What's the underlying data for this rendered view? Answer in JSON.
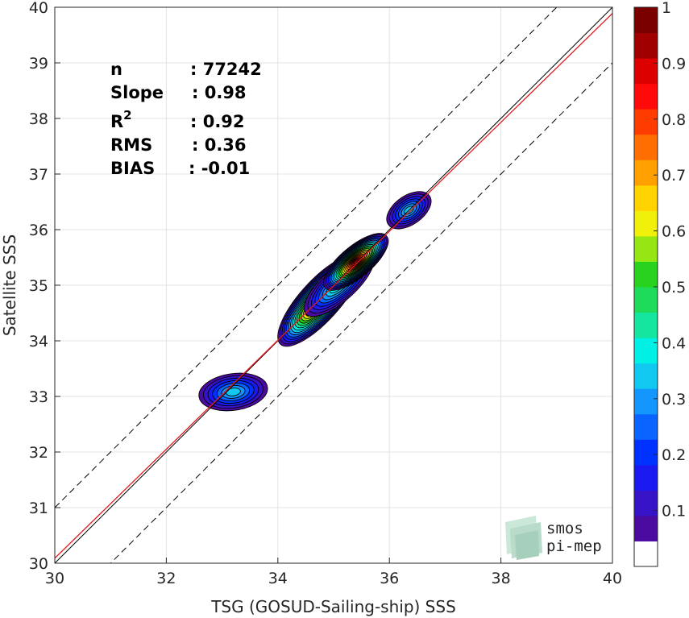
{
  "chart_data": {
    "type": "contour-density-scatter",
    "xlabel": "TSG (GOSUD-Sailing-ship) SSS",
    "ylabel": "Satellite SSS",
    "xlim": [
      30,
      40
    ],
    "ylim": [
      30,
      40
    ],
    "x_ticks": [
      "30",
      "32",
      "34",
      "36",
      "38",
      "40"
    ],
    "y_ticks": [
      "30",
      "31",
      "32",
      "33",
      "34",
      "35",
      "36",
      "37",
      "38",
      "39",
      "40"
    ],
    "grid": true,
    "stats": [
      {
        "label": "n",
        "value": ": 77242"
      },
      {
        "label": "Slope",
        "value": ": 0.98"
      },
      {
        "label": "R",
        "sup": "2",
        "value": ": 0.92"
      },
      {
        "label": "RMS",
        "value": ": 0.36"
      },
      {
        "label": "BIAS",
        "value": ": -0.01"
      }
    ],
    "reference_lines": [
      {
        "kind": "identity",
        "style": "solid",
        "color": "#000000",
        "slope": 1.0,
        "intercept": 0.0
      },
      {
        "kind": "regression",
        "style": "solid",
        "color": "#e41a1c",
        "slope": 0.98,
        "intercept": 0.69
      },
      {
        "kind": "offset+1",
        "style": "dashed",
        "color": "#000000",
        "slope": 1.0,
        "intercept": 1.0
      },
      {
        "kind": "offset-1",
        "style": "dashed",
        "color": "#000000",
        "slope": 1.0,
        "intercept": -1.0
      }
    ],
    "colorbar": {
      "min": 0,
      "max": 1,
      "tick_labels": [
        "0.1",
        "0.2",
        "0.3",
        "0.4",
        "0.5",
        "0.6",
        "0.7",
        "0.8",
        "0.9",
        "1"
      ],
      "tick_values": [
        0.1,
        0.2,
        0.3,
        0.4,
        0.5,
        0.6,
        0.7,
        0.8,
        0.9,
        1.0
      ],
      "band_colors": [
        "#ffffff",
        "#4b0aa0",
        "#3713c8",
        "#1a1af0",
        "#0032ff",
        "#0a64ff",
        "#1496ff",
        "#10c8f0",
        "#00f0e6",
        "#14e6a0",
        "#1edc5a",
        "#28d21e",
        "#96e614",
        "#f0f00a",
        "#ffd200",
        "#ffa000",
        "#ff6e00",
        "#ff3c00",
        "#ff0a0a",
        "#dc0000",
        "#a00000",
        "#7a0000"
      ]
    },
    "density_blobs": [
      {
        "cx": 33.2,
        "cy": 33.08,
        "rx": 0.62,
        "ry": 0.33,
        "angle": 8,
        "peak": 0.32
      },
      {
        "cx": 34.75,
        "cy": 34.72,
        "rx": 1.05,
        "ry": 0.36,
        "angle": 48,
        "peak": 0.9
      },
      {
        "cx": 35.1,
        "cy": 35.02,
        "rx": 0.8,
        "ry": 0.3,
        "angle": 42,
        "peak": 0.45
      },
      {
        "cx": 35.4,
        "cy": 35.42,
        "rx": 0.72,
        "ry": 0.28,
        "angle": 40,
        "peak": 0.94
      },
      {
        "cx": 36.35,
        "cy": 36.35,
        "rx": 0.45,
        "ry": 0.26,
        "angle": 35,
        "peak": 0.32
      }
    ]
  },
  "logo": {
    "line1": "smos",
    "line2": "pi-mep",
    "accent": "#7fbf9f"
  }
}
